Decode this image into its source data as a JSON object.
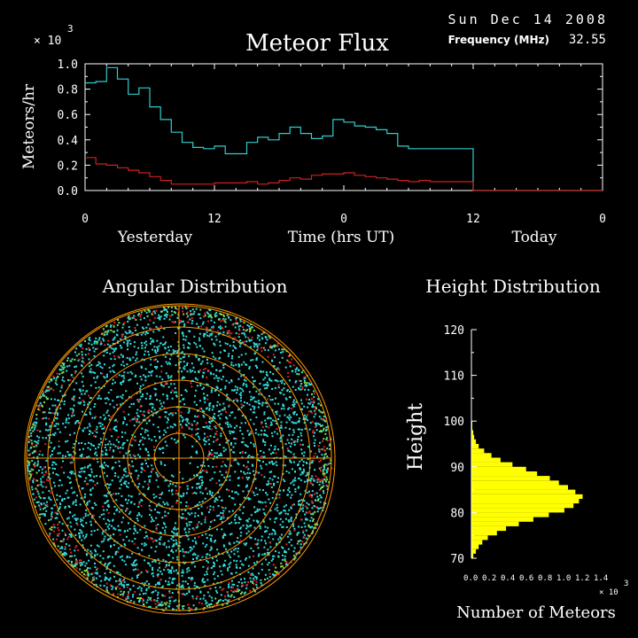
{
  "header": {
    "title": "Meteor Flux",
    "date": "Sun Dec 14 2008",
    "frequency_label": "Frequency (MHz)",
    "frequency_value": "32.55"
  },
  "angular": {
    "title": "Angular Distribution"
  },
  "colors": {
    "background": "#000000",
    "total_series": "#33cccc",
    "red_series": "#cc2222",
    "axis": "#ffffff",
    "polar_grid": "#ff9900",
    "height_bars": "#ffff00",
    "dots_cyan": "#33dddd",
    "dots_red": "#dd2222",
    "dots_green": "#88dd44"
  },
  "chart_data": [
    {
      "type": "line",
      "name": "flux",
      "step": true,
      "ylabel": "Meteors/hr",
      "y_multiplier": "× 10",
      "y_multiplier_exp": "3",
      "ylim": [
        0,
        1.0
      ],
      "yticks": [
        0.0,
        0.2,
        0.4,
        0.6,
        0.8,
        1.0
      ],
      "ytick_labels": [
        "0.0",
        "0.2",
        "0.4",
        "0.6",
        "0.8",
        "1.0"
      ],
      "xlim": [
        0,
        48
      ],
      "xtick_positions": [
        0,
        12,
        24,
        36,
        48
      ],
      "xtick_labels": [
        "0",
        "12",
        "0",
        "12",
        "0"
      ],
      "xlabel": "Time (hrs UT)",
      "day_labels": [
        "Yesterday",
        "Today"
      ],
      "series": [
        {
          "color_key": "total_series",
          "x_start": 0,
          "bin": 1,
          "values": [
            0.85,
            0.86,
            0.97,
            0.88,
            0.76,
            0.81,
            0.66,
            0.56,
            0.46,
            0.38,
            0.34,
            0.33,
            0.35,
            0.29,
            0.29,
            0.38,
            0.42,
            0.4,
            0.45,
            0.5,
            0.45,
            0.41,
            0.43,
            0.56,
            0.54,
            0.51,
            0.5,
            0.48,
            0.45,
            0.35,
            0.33,
            0.33,
            0.33,
            0.33,
            0.33,
            0.33
          ]
        },
        {
          "color_key": "red_series",
          "x_start": 0,
          "bin": 1,
          "values": [
            0.26,
            0.21,
            0.2,
            0.18,
            0.16,
            0.14,
            0.11,
            0.08,
            0.05,
            0.05,
            0.05,
            0.05,
            0.06,
            0.06,
            0.06,
            0.07,
            0.05,
            0.06,
            0.08,
            0.1,
            0.09,
            0.12,
            0.13,
            0.13,
            0.14,
            0.12,
            0.11,
            0.1,
            0.09,
            0.08,
            0.07,
            0.08,
            0.07,
            0.07,
            0.07,
            0.07
          ]
        }
      ],
      "trailing_value": 0.0
    },
    {
      "type": "bar",
      "name": "height",
      "title": "Height Distribution",
      "orientation": "horizontal",
      "ylabel": "Height",
      "xlabel": "Number of Meteors",
      "x_multiplier": "× 10",
      "x_multiplier_exp": "3",
      "ylim": [
        70,
        120
      ],
      "yticks": [
        70,
        80,
        90,
        100,
        110,
        120
      ],
      "ytick_labels": [
        "70",
        "80",
        "90",
        "100",
        "110",
        "120"
      ],
      "xlim": [
        0,
        1.4
      ],
      "xtick_labels": [
        "0.0",
        "0.2",
        "0.4",
        "0.6",
        "0.8",
        "1.0",
        "1.2",
        "1.4"
      ],
      "bin_start": 70,
      "bin_width": 1,
      "values": [
        0.02,
        0.05,
        0.08,
        0.12,
        0.18,
        0.28,
        0.38,
        0.52,
        0.68,
        0.85,
        1.02,
        1.12,
        1.18,
        1.22,
        1.14,
        1.06,
        0.96,
        0.86,
        0.72,
        0.6,
        0.45,
        0.32,
        0.22,
        0.14,
        0.08,
        0.05,
        0.03,
        0.02,
        0.01,
        0.01,
        0.005,
        0.005,
        0.0,
        0.0,
        0.0,
        0.0,
        0.0,
        0.0,
        0.0,
        0.0,
        0.0,
        0.0,
        0.0,
        0.0,
        0.0,
        0.0,
        0.0,
        0.0,
        0.0,
        0.0
      ]
    }
  ]
}
